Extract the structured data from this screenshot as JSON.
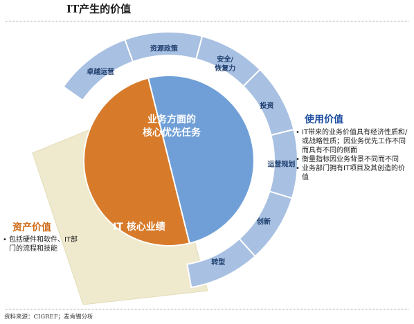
{
  "title": "IT产生的价值",
  "segments": [
    "卓越运营",
    "资源政策",
    "安全/恢复力",
    "投资",
    "运营规划",
    "创新",
    "转型"
  ],
  "blue_core": {
    "line1": "业务方面的",
    "line2": "核心优先任务"
  },
  "orange_core": "IT 核心业绩",
  "use_value": {
    "title": "使用价值",
    "bullets": [
      "IT带来的业务价值具有经济性质和/或战略性质；因业务优先工作不同而具有不同的侧面",
      "衡量指标因业务背景不同而不同",
      "业务部门拥有IT项目及其创造的价值"
    ]
  },
  "asset_value": {
    "title": "资产价值",
    "bullets": [
      "包括硬件和软件、IT部门的流程和技能"
    ]
  },
  "source": "资料来源：CIGREF；麦肯锡分析",
  "colors": {
    "outer_ring": "#a8c0e2",
    "inner_blue": "#6f9fd6",
    "orange": "#d77a2a",
    "beige": "#efe9cd",
    "accent_blue": "#1f4fa0",
    "accent_orange": "#d06a16"
  }
}
